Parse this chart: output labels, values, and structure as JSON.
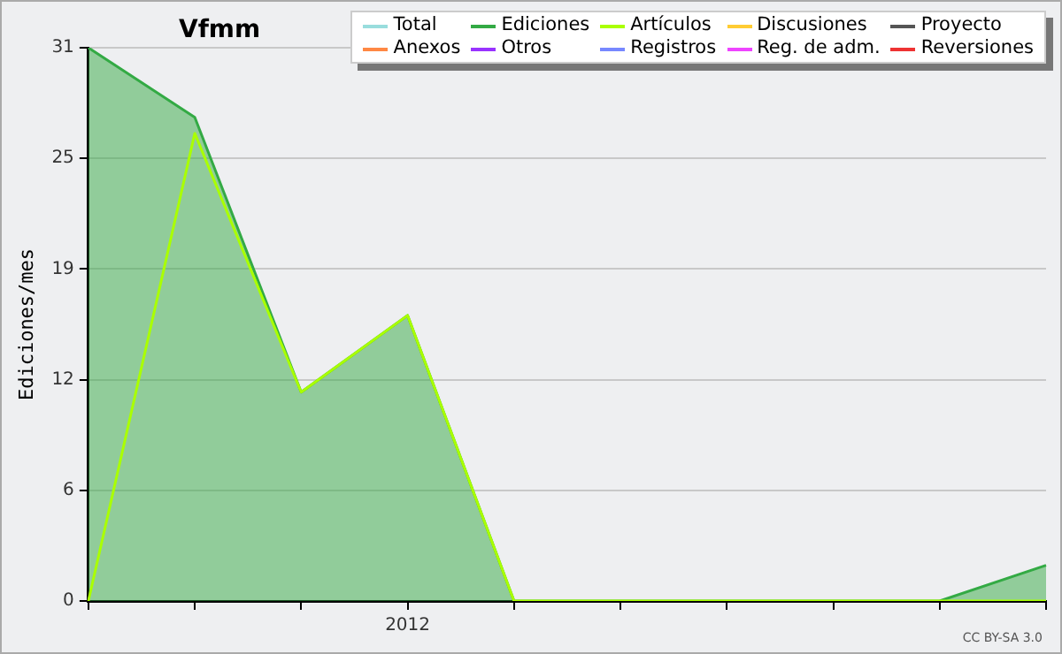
{
  "chart_data": {
    "type": "area",
    "title": "Vfmm",
    "ylabel": "Ediciones/mes",
    "categories": [
      null,
      null,
      null,
      "2012",
      null,
      null,
      null,
      null,
      null,
      null
    ],
    "ylim": [
      0,
      31
    ],
    "yticks": [
      0,
      {
        "value": 6.2,
        "label": "6"
      },
      {
        "value": 12.4,
        "label": "12"
      },
      {
        "value": 18.6,
        "label": "19"
      },
      {
        "value": 24.8,
        "label": "25"
      },
      31
    ],
    "grid": "y",
    "legend": "top right",
    "marker": "none",
    "annotations": [
      "CC BY-SA 3.0"
    ],
    "series": [
      {
        "name": "Total",
        "color": "#99dddd",
        "values": [
          null,
          null,
          null,
          null,
          null,
          null,
          null,
          null,
          null,
          null
        ]
      },
      {
        "name": "Ediciones",
        "color": "#33aa44",
        "values": [
          31,
          27.1,
          11.7,
          16,
          0,
          0,
          0,
          0,
          0,
          2
        ]
      },
      {
        "name": "Artículos",
        "color": "#aaff00",
        "type": "line",
        "values": [
          0,
          26.2,
          11.7,
          16,
          0,
          0,
          0,
          0,
          0,
          0
        ]
      },
      {
        "name": "Discusiones",
        "color": "#ffcc33",
        "values": [
          null,
          null,
          null,
          null,
          null,
          null,
          null,
          null,
          null,
          null
        ]
      },
      {
        "name": "Proyecto",
        "color": "#555555",
        "values": [
          null,
          null,
          null,
          null,
          null,
          null,
          null,
          null,
          null,
          null
        ]
      },
      {
        "name": "Anexos",
        "color": "#ff8844",
        "values": [
          null,
          null,
          null,
          null,
          null,
          null,
          null,
          null,
          null,
          null
        ]
      },
      {
        "name": "Otros",
        "color": "#9933ff",
        "values": [
          null,
          null,
          null,
          null,
          null,
          null,
          null,
          null,
          null,
          null
        ]
      },
      {
        "name": "Registros",
        "color": "#7788ff",
        "values": [
          null,
          null,
          null,
          null,
          null,
          null,
          null,
          null,
          null,
          null
        ]
      },
      {
        "name": "Reg. de adm.",
        "color": "#ee44ff",
        "values": [
          null,
          null,
          null,
          null,
          null,
          null,
          null,
          null,
          null,
          null
        ]
      },
      {
        "name": "Reversiones",
        "color": "#ee3333",
        "values": [
          null,
          null,
          null,
          null,
          null,
          null,
          null,
          null,
          null,
          null
        ]
      }
    ]
  }
}
